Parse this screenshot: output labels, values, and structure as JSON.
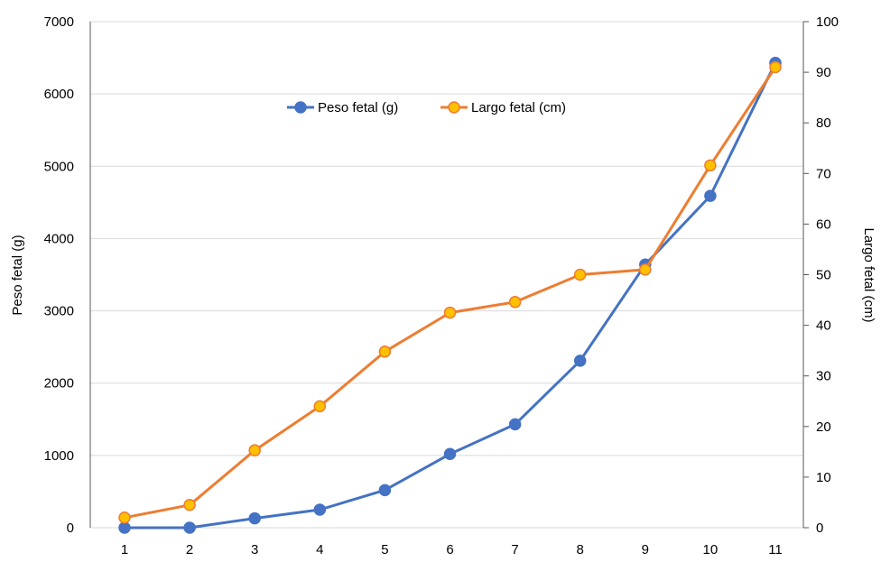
{
  "chart_data": {
    "type": "line",
    "x": [
      1,
      2,
      3,
      4,
      5,
      6,
      7,
      8,
      9,
      10,
      11
    ],
    "y_left_label": "Peso fetal (g)",
    "y_right_label": "Largo fetal (cm)",
    "y_left_lim": [
      0,
      7000
    ],
    "y_left_ticks": [
      "0",
      "1000",
      "2000",
      "3000",
      "4000",
      "5000",
      "6000",
      "7000"
    ],
    "y_right_lim": [
      0,
      100
    ],
    "y_right_ticks": [
      "0",
      "10",
      "20",
      "30",
      "40",
      "50",
      "60",
      "70",
      "80",
      "90",
      "100"
    ],
    "x_ticks": [
      "1",
      "2",
      "3",
      "4",
      "5",
      "6",
      "7",
      "8",
      "9",
      "10",
      "11"
    ],
    "grid": true,
    "legend_position": "top-center",
    "series": [
      {
        "name": "Peso fetal (g)",
        "axis": "left",
        "color": "#4472C4",
        "values": [
          0,
          0,
          130,
          250,
          520,
          1020,
          1430,
          2310,
          3640,
          4590,
          6430
        ]
      },
      {
        "name": "Largo fetal (cm)",
        "axis": "right",
        "color": "#ED7D31",
        "marker_color": "#FFC000",
        "values": [
          2,
          4.5,
          15.3,
          24,
          34.8,
          42.5,
          44.6,
          50,
          51,
          71.6,
          91
        ]
      }
    ]
  }
}
